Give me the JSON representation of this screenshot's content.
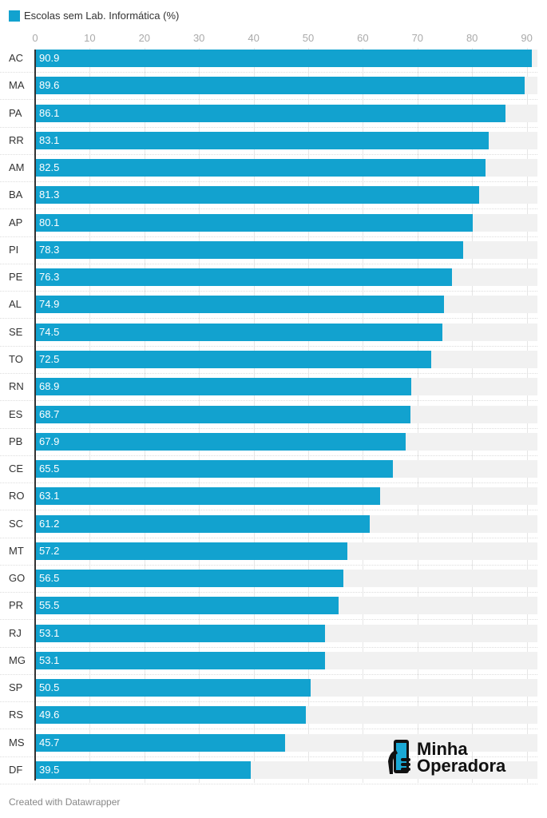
{
  "chart_data": {
    "type": "bar",
    "orientation": "horizontal",
    "legend": "Escolas sem Lab. Informática (%)",
    "color": "#12a2cf",
    "categories": [
      "AC",
      "MA",
      "PA",
      "RR",
      "AM",
      "BA",
      "AP",
      "PI",
      "PE",
      "AL",
      "SE",
      "TO",
      "RN",
      "ES",
      "PB",
      "CE",
      "RO",
      "SC",
      "MT",
      "GO",
      "PR",
      "RJ",
      "MG",
      "SP",
      "RS",
      "MS",
      "DF"
    ],
    "values": [
      90.9,
      89.6,
      86.1,
      83.1,
      82.5,
      81.3,
      80.1,
      78.3,
      76.3,
      74.9,
      74.5,
      72.5,
      68.9,
      68.7,
      67.9,
      65.5,
      63.1,
      61.2,
      57.2,
      56.5,
      55.5,
      53.1,
      53.1,
      50.5,
      49.6,
      45.7,
      39.5
    ],
    "xticks": [
      "0",
      "10",
      "20",
      "30",
      "40",
      "50",
      "60",
      "70",
      "80",
      "90"
    ],
    "xlim": [
      0,
      92
    ]
  },
  "credit": "Created with Datawrapper",
  "logo": {
    "line1": "Minha",
    "line2": "Operadora"
  }
}
